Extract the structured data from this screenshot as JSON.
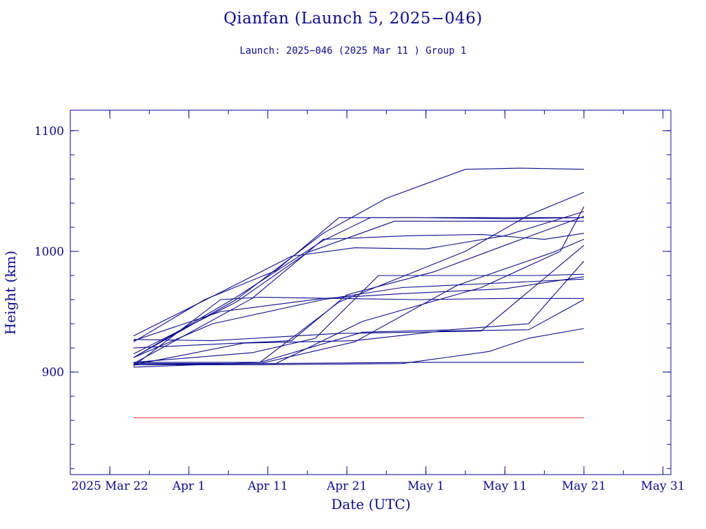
{
  "chart_data": {
    "type": "line",
    "title": "Qianfan (Launch 5, 2025−046)",
    "subtitle": "Launch: 2025−046  (2025 Mar 11 )  Group 1",
    "xlabel": "Date (UTC)",
    "ylabel": "Height (km)",
    "xlim": [
      "2025-03-17",
      "2025-06-01"
    ],
    "ylim": [
      815,
      1117
    ],
    "x_ticks": [
      {
        "date": "2025-03-22",
        "label": "2025 Mar 22"
      },
      {
        "date": "2025-04-01",
        "label": "Apr  1"
      },
      {
        "date": "2025-04-11",
        "label": "Apr 11"
      },
      {
        "date": "2025-04-21",
        "label": "Apr 21"
      },
      {
        "date": "2025-05-01",
        "label": "May  1"
      },
      {
        "date": "2025-05-11",
        "label": "May 11"
      },
      {
        "date": "2025-05-21",
        "label": "May 21"
      },
      {
        "date": "2025-05-31",
        "label": "May 31"
      }
    ],
    "y_ticks": [
      {
        "value": 900,
        "label": "900"
      },
      {
        "value": 1000,
        "label": "1000"
      },
      {
        "value": 1100,
        "label": "1100"
      }
    ],
    "grid": false,
    "series_color": "#0a0a8c",
    "reference_color": "#e03020",
    "reference_line": {
      "x": [
        "2025-03-25",
        "2025-05-21"
      ],
      "y": 862
    },
    "series": [
      {
        "x": [
          "2025-03-25",
          "2025-04-03",
          "2025-04-12",
          "2025-04-20",
          "2025-04-30",
          "2025-05-11",
          "2025-05-21"
        ],
        "y": [
          925,
          960,
          984,
          1028,
          1028,
          1027,
          1028
        ]
      },
      {
        "x": [
          "2025-03-25",
          "2025-04-07",
          "2025-04-18",
          "2025-04-26",
          "2025-05-06",
          "2025-05-13",
          "2025-05-21"
        ],
        "y": [
          912,
          960,
          1015,
          1044,
          1068,
          1069,
          1068
        ]
      },
      {
        "x": [
          "2025-03-25",
          "2025-04-07",
          "2025-04-18",
          "2025-04-24",
          "2025-04-30",
          "2025-05-10",
          "2025-05-21"
        ],
        "y": [
          912,
          962,
          1009,
          1028,
          1028,
          1028,
          1028
        ]
      },
      {
        "x": [
          "2025-03-25",
          "2025-04-07",
          "2025-04-16",
          "2025-04-27",
          "2025-05-06",
          "2025-05-16",
          "2025-05-21"
        ],
        "y": [
          915,
          958,
          999,
          1025,
          1025,
          1025,
          1025
        ]
      },
      {
        "x": [
          "2025-03-25",
          "2025-04-09",
          "2025-04-18",
          "2025-04-29",
          "2025-05-08",
          "2025-05-16",
          "2025-05-21"
        ],
        "y": [
          907,
          961,
          1010,
          1013,
          1014,
          1010,
          1015
        ]
      },
      {
        "x": [
          "2025-03-25",
          "2025-04-05",
          "2025-04-18",
          "2025-04-28",
          "2025-05-11",
          "2025-05-21"
        ],
        "y": [
          926,
          950,
          961,
          965,
          969,
          979
        ]
      },
      {
        "x": [
          "2025-03-25",
          "2025-04-04",
          "2025-04-18",
          "2025-04-28",
          "2025-05-11",
          "2025-05-21"
        ],
        "y": [
          912,
          940,
          960,
          970,
          974,
          977
        ]
      },
      {
        "x": [
          "2025-03-25",
          "2025-04-05",
          "2025-04-10",
          "2025-04-20",
          "2025-04-30",
          "2025-05-11",
          "2025-05-21"
        ],
        "y": [
          905,
          960,
          962,
          961,
          960,
          961,
          961
        ]
      },
      {
        "x": [
          "2025-03-25",
          "2025-04-09",
          "2025-04-17",
          "2025-04-25",
          "2025-05-05",
          "2025-05-15",
          "2025-05-21"
        ],
        "y": [
          908,
          916,
          928,
          980,
          980,
          980,
          981
        ]
      },
      {
        "x": [
          "2025-03-25",
          "2025-04-08",
          "2025-04-22",
          "2025-05-03",
          "2025-05-14",
          "2025-05-21"
        ],
        "y": [
          906,
          924,
          926,
          934,
          935,
          960
        ]
      },
      {
        "x": [
          "2025-03-25",
          "2025-04-10",
          "2025-04-23",
          "2025-05-04",
          "2025-05-14",
          "2025-05-21"
        ],
        "y": [
          904,
          908,
          933,
          935,
          940,
          992
        ]
      },
      {
        "x": [
          "2025-03-25",
          "2025-04-10",
          "2025-04-22",
          "2025-05-05",
          "2025-05-17",
          "2025-05-21"
        ],
        "y": [
          907,
          907,
          925,
          972,
          999,
          1010
        ]
      },
      {
        "x": [
          "2025-03-25",
          "2025-04-10",
          "2025-04-20",
          "2025-05-06",
          "2025-05-14",
          "2025-05-21"
        ],
        "y": [
          908,
          908,
          958,
          1000,
          1030,
          1049
        ]
      },
      {
        "x": [
          "2025-03-25",
          "2025-04-12",
          "2025-04-23",
          "2025-05-08",
          "2025-05-18",
          "2025-05-21"
        ],
        "y": [
          907,
          907,
          942,
          970,
          1000,
          1037
        ]
      },
      {
        "x": [
          "2025-03-25",
          "2025-04-10",
          "2025-04-28",
          "2025-05-09",
          "2025-05-14",
          "2025-05-21"
        ],
        "y": [
          906,
          906,
          907,
          917,
          928,
          936
        ]
      },
      {
        "x": [
          "2025-03-25",
          "2025-04-10",
          "2025-04-30",
          "2025-05-21"
        ],
        "y": [
          906,
          907,
          908,
          908
        ]
      },
      {
        "x": [
          "2025-03-25",
          "2025-04-04",
          "2025-04-20",
          "2025-05-08",
          "2025-05-21"
        ],
        "y": [
          927,
          926,
          932,
          934,
          1005
        ]
      },
      {
        "x": [
          "2025-03-25",
          "2025-04-14",
          "2025-04-21",
          "2025-05-02",
          "2025-05-11",
          "2025-05-21"
        ],
        "y": [
          920,
          926,
          964,
          983,
          1005,
          1029
        ]
      },
      {
        "x": [
          "2025-03-25",
          "2025-04-05",
          "2025-04-14",
          "2025-04-22",
          "2025-05-01",
          "2025-05-11",
          "2025-05-21"
        ],
        "y": [
          930,
          966,
          996,
          1003,
          1002,
          1013,
          1033
        ]
      }
    ]
  }
}
